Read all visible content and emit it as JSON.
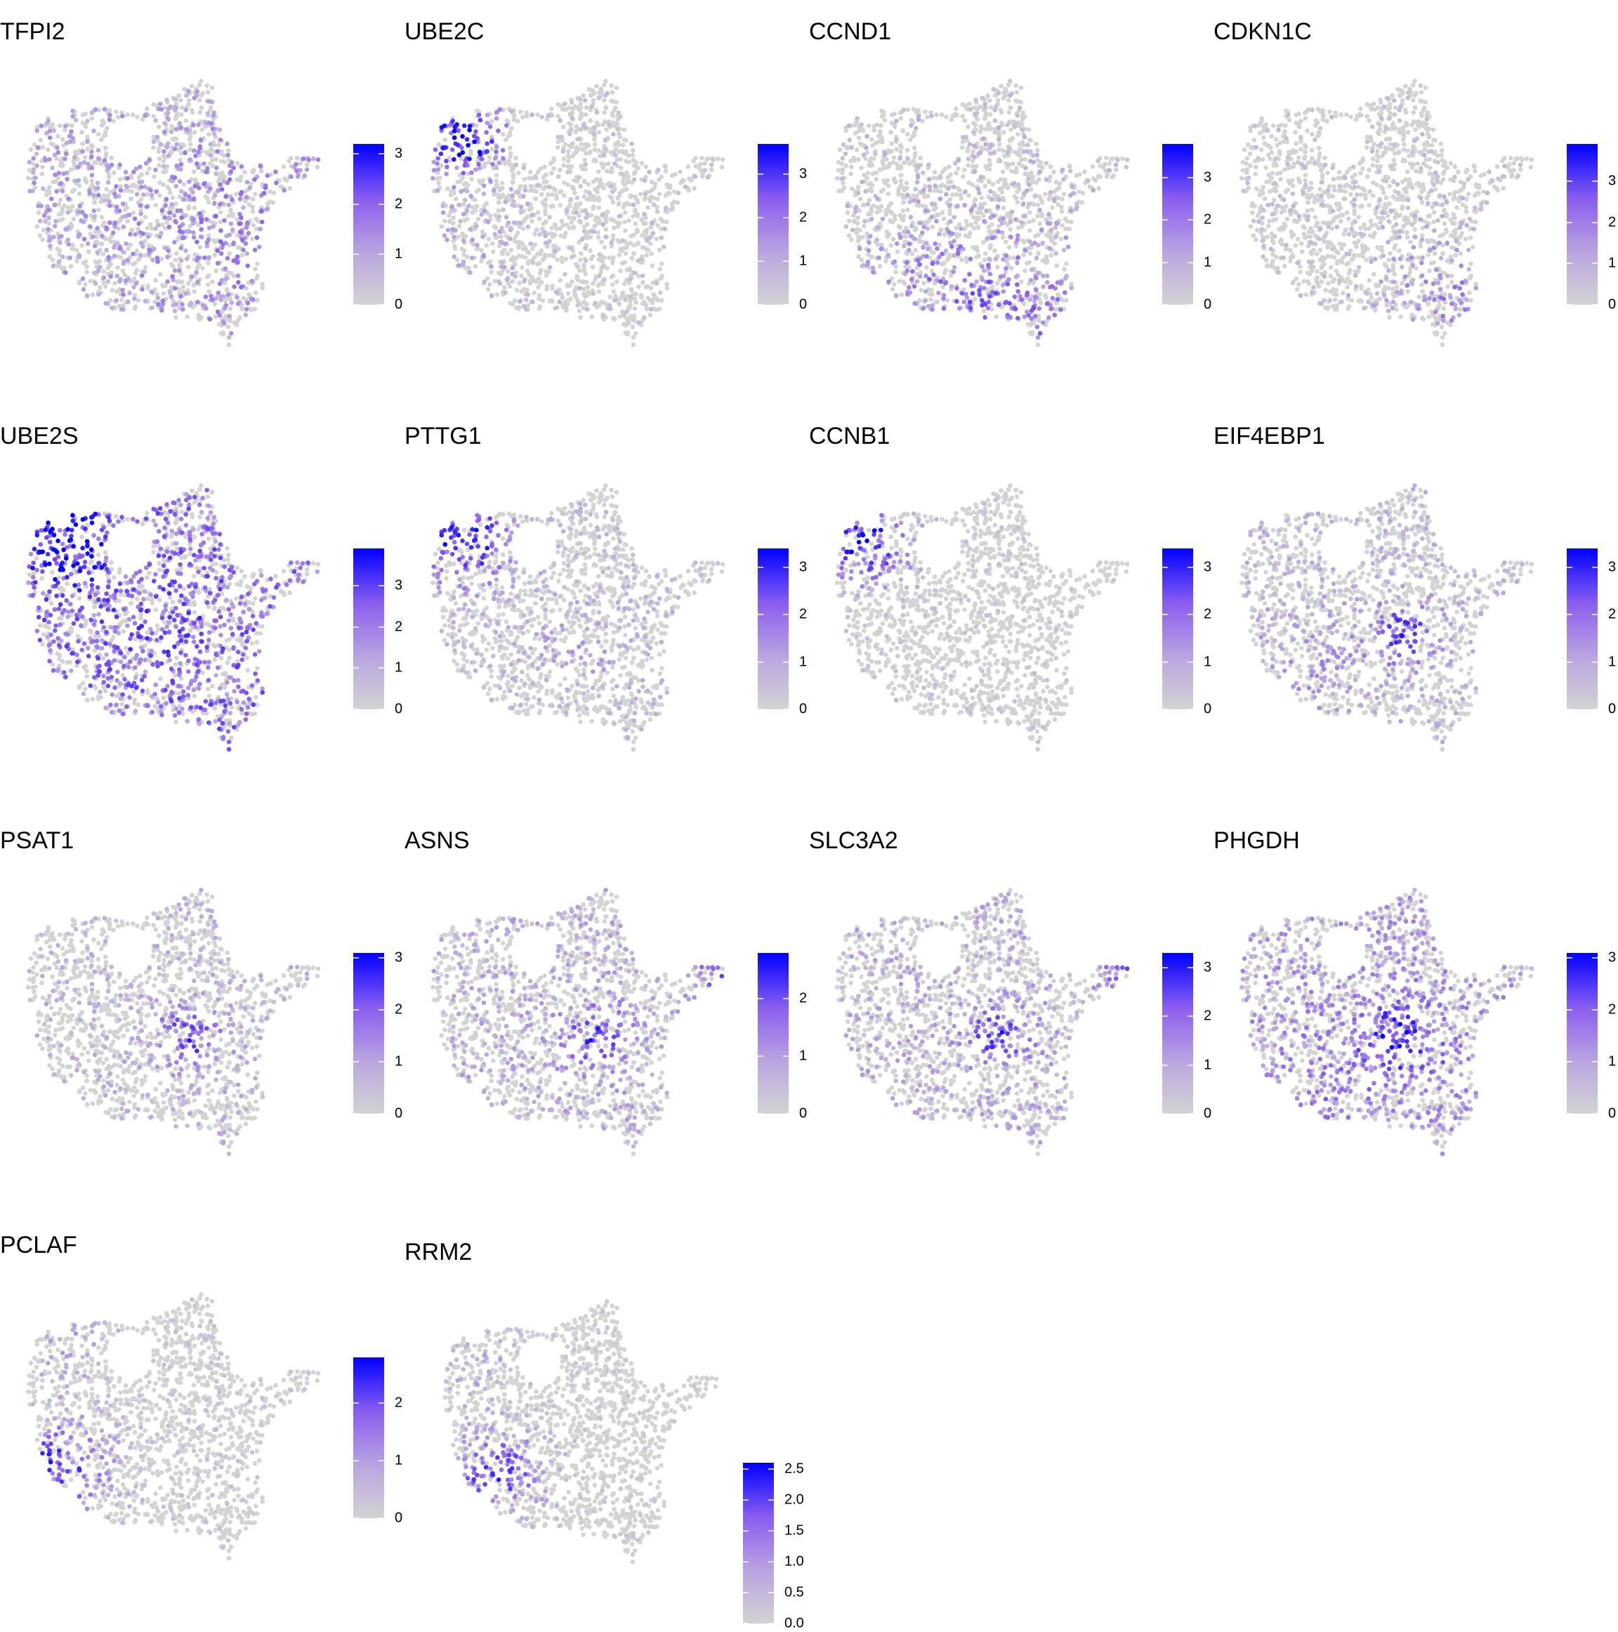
{
  "chart_data": {
    "type": "scatter",
    "description_of_encoding": "",
    "color_scale": {
      "low": "#d3d3d3",
      "high": "#0000ff"
    },
    "panels": [
      {
        "gene": "TFPI2",
        "max": 3.2,
        "ticks": [
          "0",
          "1",
          "2",
          "3"
        ]
      },
      {
        "gene": "UBE2C",
        "max": 3.7,
        "ticks": [
          "0",
          "1",
          "2",
          "3"
        ]
      },
      {
        "gene": "CCND1",
        "max": 3.8,
        "ticks": [
          "0",
          "1",
          "2",
          "3"
        ]
      },
      {
        "gene": "CDKN1C",
        "max": 3.9,
        "ticks": [
          "0",
          "1",
          "2",
          "3"
        ]
      },
      {
        "gene": "UBE2S",
        "max": 3.9,
        "ticks": [
          "0",
          "1",
          "2",
          "3"
        ]
      },
      {
        "gene": "PTTG1",
        "max": 3.4,
        "ticks": [
          "0",
          "1",
          "2",
          "3"
        ]
      },
      {
        "gene": "CCNB1",
        "max": 3.4,
        "ticks": [
          "0",
          "1",
          "2",
          "3"
        ]
      },
      {
        "gene": "EIF4EBP1",
        "max": 3.4,
        "ticks": [
          "0",
          "1",
          "2",
          "3"
        ]
      },
      {
        "gene": "PSAT1",
        "max": 3.1,
        "ticks": [
          "0",
          "1",
          "2",
          "3"
        ]
      },
      {
        "gene": "ASNS",
        "max": 2.8,
        "ticks": [
          "0",
          "1",
          "2"
        ]
      },
      {
        "gene": "SLC3A2",
        "max": 3.3,
        "ticks": [
          "0",
          "1",
          "2",
          "3"
        ]
      },
      {
        "gene": "PHGDH",
        "max": 3.1,
        "ticks": [
          "0",
          "1",
          "2",
          "3"
        ]
      },
      {
        "gene": "PCLAF",
        "max": 2.8,
        "ticks": [
          "0",
          "1",
          "2"
        ]
      },
      {
        "gene": "RRM2",
        "max": 2.6,
        "ticks": [
          "0.0",
          "0.5",
          "1.0",
          "1.5",
          "2.0",
          "2.5"
        ]
      }
    ]
  }
}
